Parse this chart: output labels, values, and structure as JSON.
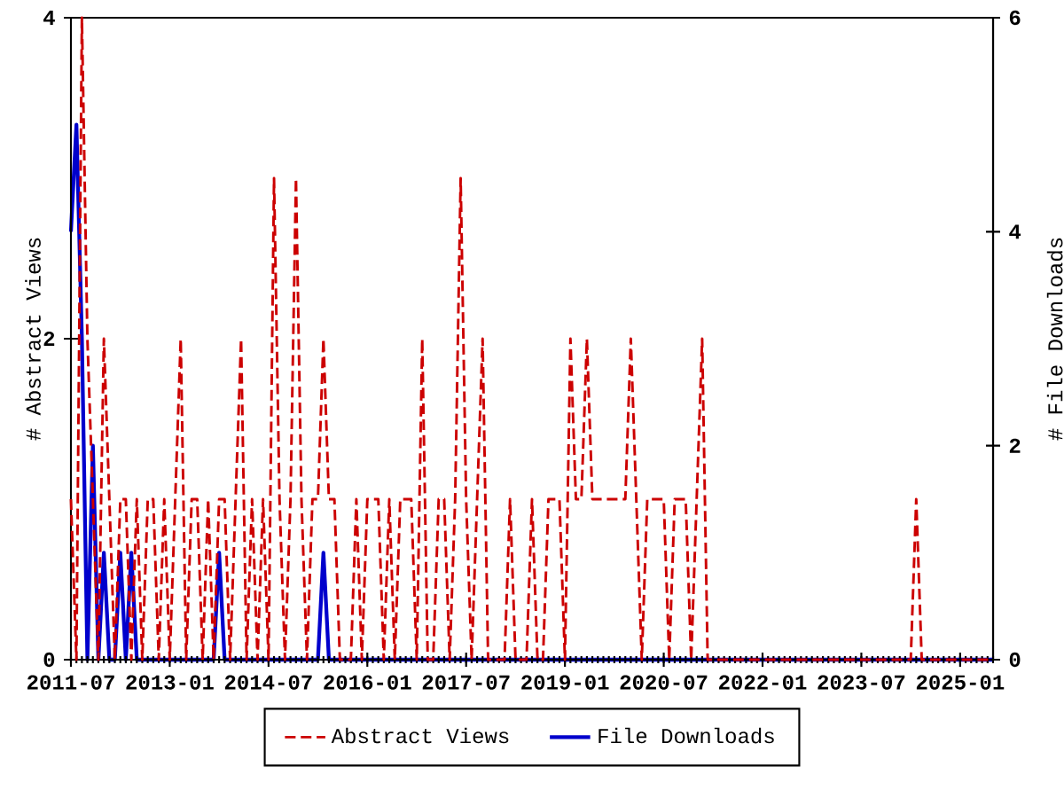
{
  "chart_data": {
    "type": "line",
    "x": [
      "2011-07",
      "2011-08",
      "2011-09",
      "2011-10",
      "2011-11",
      "2011-12",
      "2012-01",
      "2012-02",
      "2012-03",
      "2012-04",
      "2012-05",
      "2012-06",
      "2012-07",
      "2012-08",
      "2012-09",
      "2012-10",
      "2012-11",
      "2012-12",
      "2013-01",
      "2013-02",
      "2013-03",
      "2013-04",
      "2013-05",
      "2013-06",
      "2013-07",
      "2013-08",
      "2013-09",
      "2013-10",
      "2013-11",
      "2013-12",
      "2014-01",
      "2014-02",
      "2014-03",
      "2014-04",
      "2014-05",
      "2014-06",
      "2014-07",
      "2014-08",
      "2014-09",
      "2014-10",
      "2014-11",
      "2014-12",
      "2015-01",
      "2015-02",
      "2015-03",
      "2015-04",
      "2015-05",
      "2015-06",
      "2015-07",
      "2015-08",
      "2015-09",
      "2015-10",
      "2015-11",
      "2015-12",
      "2016-01",
      "2016-02",
      "2016-03",
      "2016-04",
      "2016-05",
      "2016-06",
      "2016-07",
      "2016-08",
      "2016-09",
      "2016-10",
      "2016-11",
      "2016-12",
      "2017-01",
      "2017-02",
      "2017-03",
      "2017-04",
      "2017-05",
      "2017-06",
      "2017-07",
      "2017-08",
      "2017-09",
      "2017-10",
      "2017-11",
      "2017-12",
      "2018-01",
      "2018-02",
      "2018-03",
      "2018-04",
      "2018-05",
      "2018-06",
      "2018-07",
      "2018-08",
      "2018-09",
      "2018-10",
      "2018-11",
      "2018-12",
      "2019-01",
      "2019-02",
      "2019-03",
      "2019-04",
      "2019-05",
      "2019-06",
      "2019-07",
      "2019-08",
      "2019-09",
      "2019-10",
      "2019-11",
      "2019-12",
      "2020-01",
      "2020-02",
      "2020-03",
      "2020-04",
      "2020-05",
      "2020-06",
      "2020-07",
      "2020-08",
      "2020-09",
      "2020-10",
      "2020-11",
      "2020-12",
      "2021-01",
      "2021-02",
      "2021-03",
      "2021-04",
      "2021-05",
      "2021-06",
      "2021-07",
      "2021-08",
      "2021-09",
      "2021-10",
      "2021-11",
      "2021-12",
      "2022-01",
      "2022-02",
      "2022-03",
      "2022-04",
      "2022-05",
      "2022-06",
      "2022-07",
      "2022-08",
      "2022-09",
      "2022-10",
      "2022-11",
      "2022-12",
      "2023-01",
      "2023-02",
      "2023-03",
      "2023-04",
      "2023-05",
      "2023-06",
      "2023-07",
      "2023-08",
      "2023-09",
      "2023-10",
      "2023-11",
      "2023-12",
      "2024-01",
      "2024-02",
      "2024-03",
      "2024-04",
      "2024-05",
      "2024-06",
      "2024-07",
      "2024-08",
      "2024-09",
      "2024-10",
      "2024-11",
      "2024-12",
      "2025-01",
      "2025-02",
      "2025-03",
      "2025-04",
      "2025-05",
      "2025-06",
      "2025-07"
    ],
    "xlim": [
      "2011-07",
      "2025-07"
    ],
    "xticks": [
      "2011-07",
      "2013-01",
      "2014-07",
      "2016-01",
      "2017-07",
      "2019-01",
      "2020-07",
      "2022-01",
      "2023-07",
      "2025-01"
    ],
    "ylabel": "# Abstract Views",
    "y2label": "# File Downloads",
    "ylim": [
      0,
      4
    ],
    "yticks": [
      0,
      2,
      4
    ],
    "y2lim": [
      0,
      6
    ],
    "y2ticks": [
      0,
      2,
      4,
      6
    ],
    "legend": "bottom",
    "series": [
      {
        "name": "Abstract Views",
        "color": "#cc0000",
        "line_style": "dashed",
        "values": [
          1,
          0,
          4,
          2,
          1,
          0,
          2,
          1,
          0,
          1,
          1,
          0,
          1,
          0,
          1,
          1,
          0,
          1,
          0,
          1,
          2,
          0,
          1,
          1,
          0,
          1,
          0,
          1,
          1,
          0,
          1,
          2,
          0,
          1,
          0,
          1,
          0,
          3,
          1,
          0,
          1,
          3,
          1,
          0,
          1,
          1,
          2,
          1,
          1,
          0,
          0,
          0,
          1,
          0,
          1,
          1,
          1,
          0,
          1,
          0,
          1,
          1,
          1,
          0,
          2,
          0,
          0,
          1,
          1,
          0,
          1,
          3,
          1,
          0,
          1,
          2,
          0,
          0,
          0,
          0,
          1,
          0,
          0,
          0,
          1,
          0,
          0,
          1,
          1,
          1,
          0,
          2,
          1,
          1,
          2,
          1,
          1,
          1,
          1,
          1,
          1,
          1,
          2,
          1,
          0,
          1,
          1,
          1,
          1,
          0,
          1,
          1,
          1,
          0,
          1,
          2,
          0,
          0,
          0,
          0,
          0,
          0,
          0,
          0,
          0,
          0,
          0,
          0,
          0,
          0,
          0,
          0,
          0,
          0,
          0,
          0,
          0,
          0,
          0,
          0,
          0,
          0,
          0,
          0,
          0,
          0,
          0,
          0,
          0,
          0,
          0,
          0,
          0,
          0,
          1,
          0,
          0,
          0,
          0,
          0,
          0,
          0,
          0,
          0,
          0,
          0,
          0,
          0,
          0
        ]
      },
      {
        "name": "File Downloads",
        "color": "#0000cc",
        "line_style": "solid",
        "axis": "y2",
        "values": [
          4,
          5,
          3,
          0,
          2,
          0,
          1,
          0,
          0,
          1,
          0,
          1,
          0,
          0,
          0,
          0,
          0,
          0,
          0,
          0,
          0,
          0,
          0,
          0,
          0,
          0,
          0,
          1,
          0,
          0,
          0,
          0,
          0,
          0,
          0,
          0,
          0,
          0,
          0,
          0,
          0,
          0,
          0,
          0,
          0,
          0,
          1,
          0,
          0,
          0,
          0,
          0,
          0,
          0,
          0,
          0,
          0,
          0,
          0,
          0,
          0,
          0,
          0,
          0,
          0,
          0,
          0,
          0,
          0,
          0,
          0,
          0,
          0,
          0,
          0,
          0,
          0,
          0,
          0,
          0,
          0,
          0,
          0,
          0,
          0,
          0,
          0,
          0,
          0,
          0,
          0,
          0,
          0,
          0,
          0,
          0,
          0,
          0,
          0,
          0,
          0,
          0,
          0,
          0,
          0,
          0,
          0,
          0,
          0,
          0,
          0,
          0,
          0,
          0,
          0,
          0,
          0,
          0,
          0,
          0,
          0,
          0,
          0,
          0,
          0,
          0,
          0,
          0,
          0,
          0,
          0,
          0,
          0,
          0,
          0,
          0,
          0,
          0,
          0,
          0,
          0,
          0,
          0,
          0,
          0,
          0,
          0,
          0,
          0,
          0,
          0,
          0,
          0,
          0,
          0,
          0,
          0,
          0,
          0,
          0,
          0,
          0,
          0,
          0,
          0,
          0,
          0,
          0,
          0
        ]
      }
    ]
  }
}
